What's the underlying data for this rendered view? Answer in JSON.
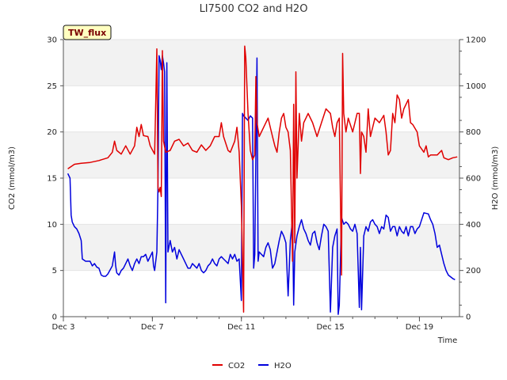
{
  "chart_data": {
    "type": "line",
    "title": "LI7500 CO2 and H2O",
    "badge": "TW_flux",
    "xlabel": "Time",
    "ylabel_left": "CO2 (mmol/m3)",
    "ylabel_right": "H2O (mmol/m3)",
    "x_ticks": [
      {
        "day": 3,
        "label": "Dec 3"
      },
      {
        "day": 7,
        "label": "Dec 7"
      },
      {
        "day": 11,
        "label": "Dec 11"
      },
      {
        "day": 15,
        "label": "Dec 15"
      },
      {
        "day": 19,
        "label": "Dec 19"
      }
    ],
    "xlim": [
      3,
      20.8
    ],
    "ylim_left": [
      0,
      30
    ],
    "yticks_left": [
      0,
      5,
      10,
      15,
      20,
      25,
      30
    ],
    "ylim_right": [
      0,
      1200
    ],
    "yticks_right": [
      0,
      200,
      400,
      600,
      800,
      1000,
      1200
    ],
    "colors": {
      "co2": "#e00000",
      "h2o": "#0000dd",
      "band": "#f2f2f2",
      "badge_bg": "#ffffc0"
    },
    "series": [
      {
        "name": "CO2",
        "axis": "left",
        "points": [
          [
            3.2,
            16.0
          ],
          [
            3.5,
            16.5
          ],
          [
            3.8,
            16.6
          ],
          [
            4.2,
            16.7
          ],
          [
            4.6,
            16.9
          ],
          [
            5.0,
            17.2
          ],
          [
            5.2,
            17.8
          ],
          [
            5.3,
            19.0
          ],
          [
            5.4,
            18.0
          ],
          [
            5.6,
            17.6
          ],
          [
            5.8,
            18.5
          ],
          [
            6.0,
            17.6
          ],
          [
            6.2,
            18.5
          ],
          [
            6.3,
            20.5
          ],
          [
            6.4,
            19.5
          ],
          [
            6.5,
            20.8
          ],
          [
            6.6,
            19.6
          ],
          [
            6.8,
            19.5
          ],
          [
            6.9,
            18.5
          ],
          [
            7.1,
            17.6
          ],
          [
            7.2,
            29.0
          ],
          [
            7.25,
            14.0
          ],
          [
            7.3,
            13.5
          ],
          [
            7.35,
            14.0
          ],
          [
            7.4,
            13.0
          ],
          [
            7.45,
            28.8
          ],
          [
            7.5,
            19.0
          ],
          [
            7.6,
            17.8
          ],
          [
            7.8,
            18.0
          ],
          [
            8.0,
            19.0
          ],
          [
            8.2,
            19.2
          ],
          [
            8.4,
            18.5
          ],
          [
            8.6,
            18.8
          ],
          [
            8.8,
            18.0
          ],
          [
            9.0,
            17.8
          ],
          [
            9.2,
            18.6
          ],
          [
            9.4,
            18.0
          ],
          [
            9.6,
            18.5
          ],
          [
            9.8,
            19.5
          ],
          [
            10.0,
            19.5
          ],
          [
            10.1,
            21.0
          ],
          [
            10.2,
            19.5
          ],
          [
            10.4,
            18.0
          ],
          [
            10.5,
            17.8
          ],
          [
            10.7,
            19.0
          ],
          [
            10.8,
            20.5
          ],
          [
            10.9,
            17.8
          ],
          [
            11.0,
            12.0
          ],
          [
            11.1,
            0.5
          ],
          [
            11.15,
            29.3
          ],
          [
            11.2,
            28.0
          ],
          [
            11.3,
            22.0
          ],
          [
            11.4,
            18.0
          ],
          [
            11.5,
            17.0
          ],
          [
            11.6,
            17.5
          ],
          [
            11.65,
            26.0
          ],
          [
            11.7,
            21.0
          ],
          [
            11.8,
            19.5
          ],
          [
            12.0,
            20.5
          ],
          [
            12.2,
            21.5
          ],
          [
            12.4,
            19.5
          ],
          [
            12.5,
            18.5
          ],
          [
            12.6,
            17.8
          ],
          [
            12.7,
            20.0
          ],
          [
            12.8,
            21.5
          ],
          [
            12.9,
            22.0
          ],
          [
            13.0,
            20.5
          ],
          [
            13.1,
            20.0
          ],
          [
            13.2,
            18.0
          ],
          [
            13.3,
            6.0
          ],
          [
            13.35,
            23.0
          ],
          [
            13.4,
            8.0
          ],
          [
            13.45,
            26.5
          ],
          [
            13.5,
            15.0
          ],
          [
            13.6,
            22.0
          ],
          [
            13.7,
            19.0
          ],
          [
            13.8,
            21.0
          ],
          [
            13.9,
            21.5
          ],
          [
            14.0,
            22.0
          ],
          [
            14.2,
            21.0
          ],
          [
            14.4,
            19.5
          ],
          [
            14.6,
            21.0
          ],
          [
            14.8,
            22.5
          ],
          [
            15.0,
            22.0
          ],
          [
            15.1,
            20.5
          ],
          [
            15.2,
            19.5
          ],
          [
            15.3,
            21.0
          ],
          [
            15.4,
            21.5
          ],
          [
            15.5,
            4.5
          ],
          [
            15.55,
            28.5
          ],
          [
            15.6,
            22.0
          ],
          [
            15.7,
            20.0
          ],
          [
            15.8,
            21.5
          ],
          [
            16.0,
            20.0
          ],
          [
            16.1,
            21.0
          ],
          [
            16.2,
            22.0
          ],
          [
            16.3,
            22.0
          ],
          [
            16.35,
            15.5
          ],
          [
            16.4,
            20.0
          ],
          [
            16.5,
            19.5
          ],
          [
            16.6,
            17.8
          ],
          [
            16.7,
            22.5
          ],
          [
            16.8,
            19.5
          ],
          [
            17.0,
            21.5
          ],
          [
            17.2,
            21.0
          ],
          [
            17.4,
            21.8
          ],
          [
            17.5,
            20.0
          ],
          [
            17.6,
            17.5
          ],
          [
            17.7,
            18.0
          ],
          [
            17.8,
            22.0
          ],
          [
            17.9,
            21.0
          ],
          [
            18.0,
            24.0
          ],
          [
            18.1,
            23.5
          ],
          [
            18.2,
            21.5
          ],
          [
            18.3,
            22.5
          ],
          [
            18.5,
            23.5
          ],
          [
            18.6,
            21.0
          ],
          [
            18.7,
            20.8
          ],
          [
            18.9,
            20.0
          ],
          [
            19.0,
            18.5
          ],
          [
            19.2,
            17.8
          ],
          [
            19.3,
            18.5
          ],
          [
            19.4,
            17.3
          ],
          [
            19.5,
            17.5
          ],
          [
            19.8,
            17.5
          ],
          [
            20.0,
            18.0
          ],
          [
            20.1,
            17.2
          ],
          [
            20.3,
            17.0
          ],
          [
            20.5,
            17.2
          ],
          [
            20.7,
            17.3
          ]
        ]
      },
      {
        "name": "H2O",
        "axis": "right",
        "points": [
          [
            3.2,
            620
          ],
          [
            3.3,
            600
          ],
          [
            3.35,
            440
          ],
          [
            3.4,
            410
          ],
          [
            3.5,
            390
          ],
          [
            3.6,
            380
          ],
          [
            3.7,
            360
          ],
          [
            3.8,
            330
          ],
          [
            3.85,
            250
          ],
          [
            4.0,
            240
          ],
          [
            4.2,
            240
          ],
          [
            4.3,
            220
          ],
          [
            4.4,
            230
          ],
          [
            4.5,
            215
          ],
          [
            4.6,
            210
          ],
          [
            4.7,
            180
          ],
          [
            4.8,
            175
          ],
          [
            4.9,
            175
          ],
          [
            5.0,
            185
          ],
          [
            5.2,
            220
          ],
          [
            5.3,
            280
          ],
          [
            5.35,
            220
          ],
          [
            5.4,
            190
          ],
          [
            5.5,
            180
          ],
          [
            5.6,
            200
          ],
          [
            5.7,
            210
          ],
          [
            5.8,
            230
          ],
          [
            5.9,
            250
          ],
          [
            6.0,
            220
          ],
          [
            6.1,
            200
          ],
          [
            6.2,
            230
          ],
          [
            6.3,
            250
          ],
          [
            6.4,
            230
          ],
          [
            6.5,
            260
          ],
          [
            6.6,
            260
          ],
          [
            6.7,
            270
          ],
          [
            6.8,
            240
          ],
          [
            6.9,
            260
          ],
          [
            7.0,
            280
          ],
          [
            7.05,
            220
          ],
          [
            7.1,
            200
          ],
          [
            7.2,
            280
          ],
          [
            7.25,
            560
          ],
          [
            7.3,
            1130
          ],
          [
            7.35,
            1110
          ],
          [
            7.4,
            1070
          ],
          [
            7.45,
            1130
          ],
          [
            7.5,
            1100
          ],
          [
            7.55,
            1060
          ],
          [
            7.6,
            60
          ],
          [
            7.65,
            1100
          ],
          [
            7.7,
            280
          ],
          [
            7.8,
            330
          ],
          [
            7.9,
            280
          ],
          [
            8.0,
            300
          ],
          [
            8.1,
            250
          ],
          [
            8.2,
            290
          ],
          [
            8.3,
            270
          ],
          [
            8.4,
            250
          ],
          [
            8.5,
            230
          ],
          [
            8.6,
            210
          ],
          [
            8.7,
            210
          ],
          [
            8.8,
            230
          ],
          [
            8.9,
            220
          ],
          [
            9.0,
            210
          ],
          [
            9.1,
            230
          ],
          [
            9.2,
            200
          ],
          [
            9.3,
            190
          ],
          [
            9.4,
            200
          ],
          [
            9.5,
            220
          ],
          [
            9.6,
            230
          ],
          [
            9.7,
            250
          ],
          [
            9.8,
            230
          ],
          [
            9.9,
            220
          ],
          [
            10.0,
            250
          ],
          [
            10.1,
            260
          ],
          [
            10.2,
            250
          ],
          [
            10.3,
            240
          ],
          [
            10.4,
            230
          ],
          [
            10.5,
            270
          ],
          [
            10.6,
            250
          ],
          [
            10.7,
            270
          ],
          [
            10.8,
            240
          ],
          [
            10.9,
            250
          ],
          [
            11.0,
            70
          ],
          [
            11.05,
            880
          ],
          [
            11.1,
            870
          ],
          [
            11.2,
            860
          ],
          [
            11.3,
            850
          ],
          [
            11.4,
            870
          ],
          [
            11.5,
            860
          ],
          [
            11.55,
            210
          ],
          [
            11.6,
            270
          ],
          [
            11.7,
            1120
          ],
          [
            11.75,
            240
          ],
          [
            11.8,
            280
          ],
          [
            11.9,
            270
          ],
          [
            12.0,
            260
          ],
          [
            12.1,
            300
          ],
          [
            12.2,
            320
          ],
          [
            12.3,
            290
          ],
          [
            12.4,
            210
          ],
          [
            12.5,
            230
          ],
          [
            12.6,
            280
          ],
          [
            12.7,
            330
          ],
          [
            12.8,
            370
          ],
          [
            12.9,
            350
          ],
          [
            13.0,
            320
          ],
          [
            13.1,
            90
          ],
          [
            13.2,
            330
          ],
          [
            13.3,
            420
          ],
          [
            13.35,
            50
          ],
          [
            13.4,
            280
          ],
          [
            13.5,
            350
          ],
          [
            13.6,
            390
          ],
          [
            13.7,
            420
          ],
          [
            13.8,
            380
          ],
          [
            13.9,
            360
          ],
          [
            14.0,
            330
          ],
          [
            14.1,
            310
          ],
          [
            14.2,
            360
          ],
          [
            14.3,
            370
          ],
          [
            14.4,
            320
          ],
          [
            14.5,
            290
          ],
          [
            14.6,
            350
          ],
          [
            14.7,
            400
          ],
          [
            14.8,
            390
          ],
          [
            14.9,
            370
          ],
          [
            15.0,
            20
          ],
          [
            15.1,
            300
          ],
          [
            15.2,
            350
          ],
          [
            15.3,
            380
          ],
          [
            15.35,
            10
          ],
          [
            15.4,
            50
          ],
          [
            15.5,
            430
          ],
          [
            15.6,
            400
          ],
          [
            15.7,
            410
          ],
          [
            15.8,
            400
          ],
          [
            15.9,
            380
          ],
          [
            16.0,
            370
          ],
          [
            16.1,
            400
          ],
          [
            16.2,
            360
          ],
          [
            16.3,
            40
          ],
          [
            16.35,
            300
          ],
          [
            16.4,
            30
          ],
          [
            16.5,
            350
          ],
          [
            16.6,
            390
          ],
          [
            16.7,
            370
          ],
          [
            16.8,
            410
          ],
          [
            16.9,
            420
          ],
          [
            17.0,
            400
          ],
          [
            17.1,
            390
          ],
          [
            17.2,
            360
          ],
          [
            17.3,
            390
          ],
          [
            17.4,
            380
          ],
          [
            17.5,
            440
          ],
          [
            17.6,
            430
          ],
          [
            17.7,
            370
          ],
          [
            17.8,
            390
          ],
          [
            17.9,
            390
          ],
          [
            18.0,
            350
          ],
          [
            18.1,
            390
          ],
          [
            18.2,
            370
          ],
          [
            18.3,
            360
          ],
          [
            18.4,
            390
          ],
          [
            18.5,
            350
          ],
          [
            18.6,
            390
          ],
          [
            18.7,
            390
          ],
          [
            18.8,
            360
          ],
          [
            18.9,
            380
          ],
          [
            19.0,
            390
          ],
          [
            19.2,
            450
          ],
          [
            19.4,
            445
          ],
          [
            19.5,
            420
          ],
          [
            19.6,
            400
          ],
          [
            19.7,
            360
          ],
          [
            19.8,
            300
          ],
          [
            19.9,
            310
          ],
          [
            20.0,
            270
          ],
          [
            20.1,
            230
          ],
          [
            20.2,
            200
          ],
          [
            20.3,
            180
          ],
          [
            20.5,
            165
          ],
          [
            20.6,
            160
          ]
        ]
      }
    ]
  }
}
